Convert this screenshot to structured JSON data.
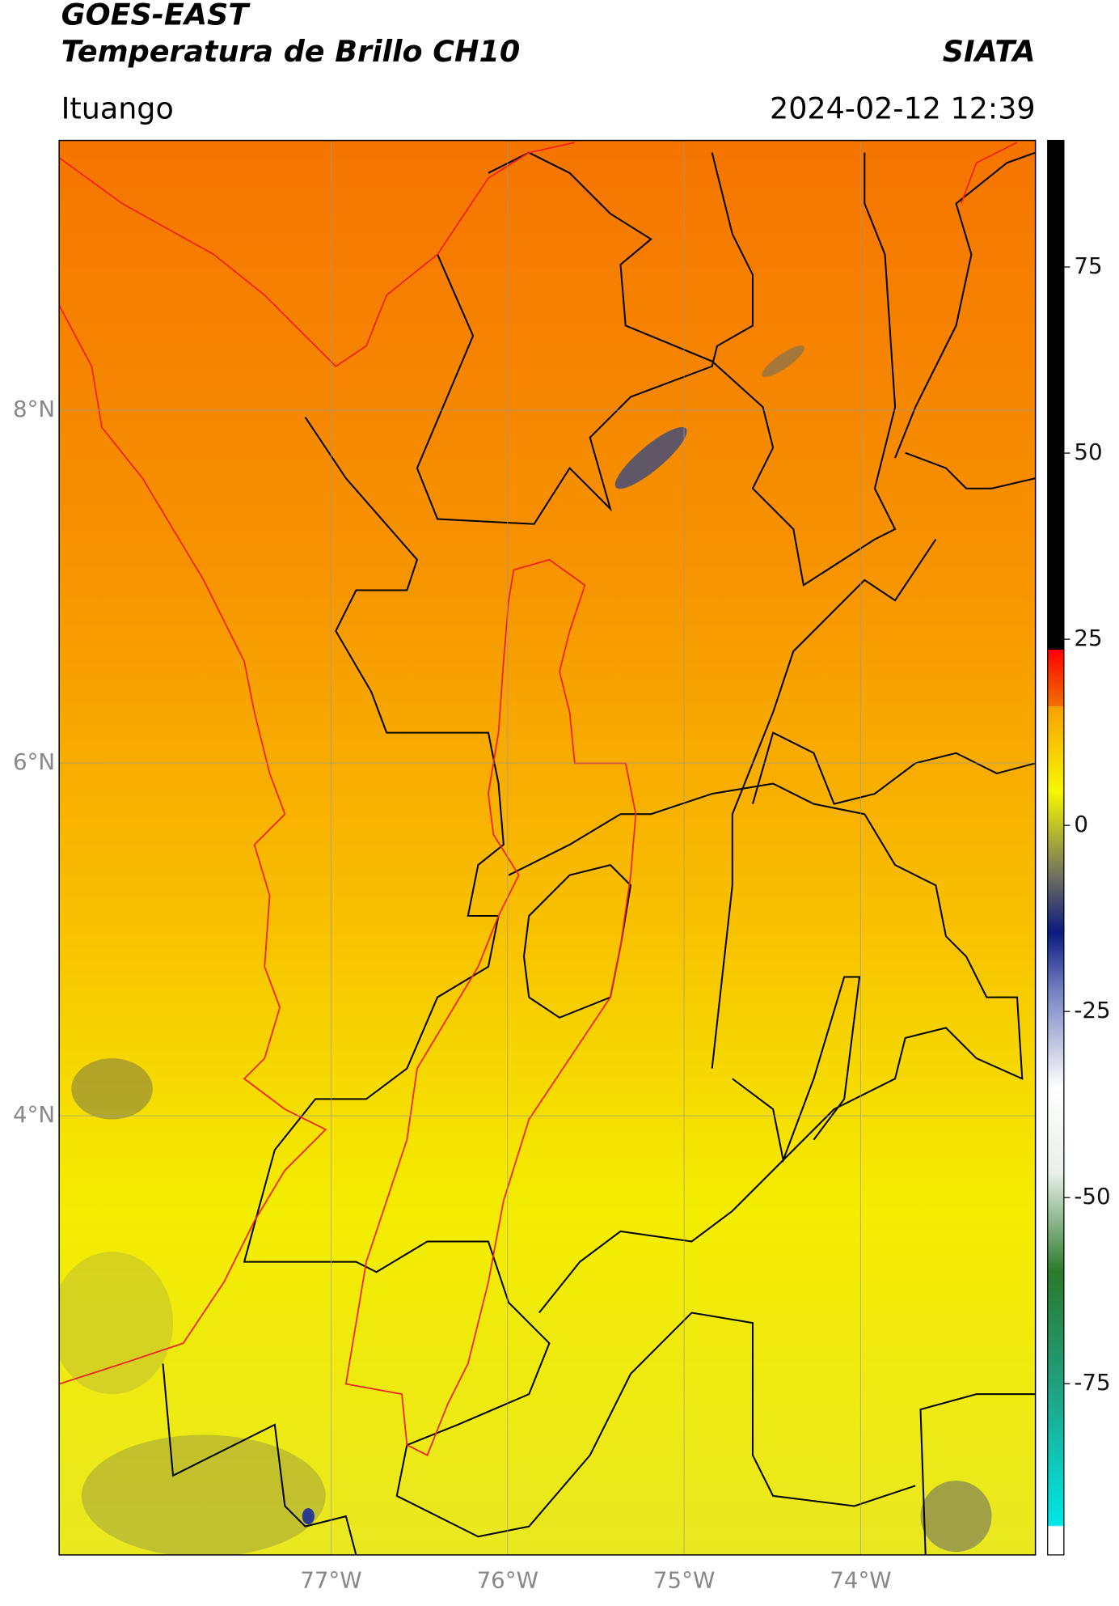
{
  "header": {
    "title": "GOES-EAST",
    "subtitle": "Temperatura de Brillo CH10",
    "source": "SIATA",
    "region": "Ituango",
    "datetime": "2024-02-12 12:39"
  },
  "map": {
    "xlim": [
      -78.54,
      -73.01
    ],
    "ylim": [
      1.51,
      9.53
    ],
    "xticks": [
      {
        "value": -77,
        "label": "77°W"
      },
      {
        "value": -76,
        "label": "76°W"
      },
      {
        "value": -75,
        "label": "75°W"
      },
      {
        "value": -74,
        "label": "74°W"
      }
    ],
    "yticks": [
      {
        "value": 8,
        "label": "8°N"
      },
      {
        "value": 6,
        "label": "6°N"
      },
      {
        "value": 4,
        "label": "4°N"
      }
    ],
    "grid": true
  },
  "colorbar": {
    "lim": [
      -98,
      92
    ],
    "ticks": [
      75,
      50,
      25,
      0,
      -25,
      -50,
      -75
    ]
  }
}
